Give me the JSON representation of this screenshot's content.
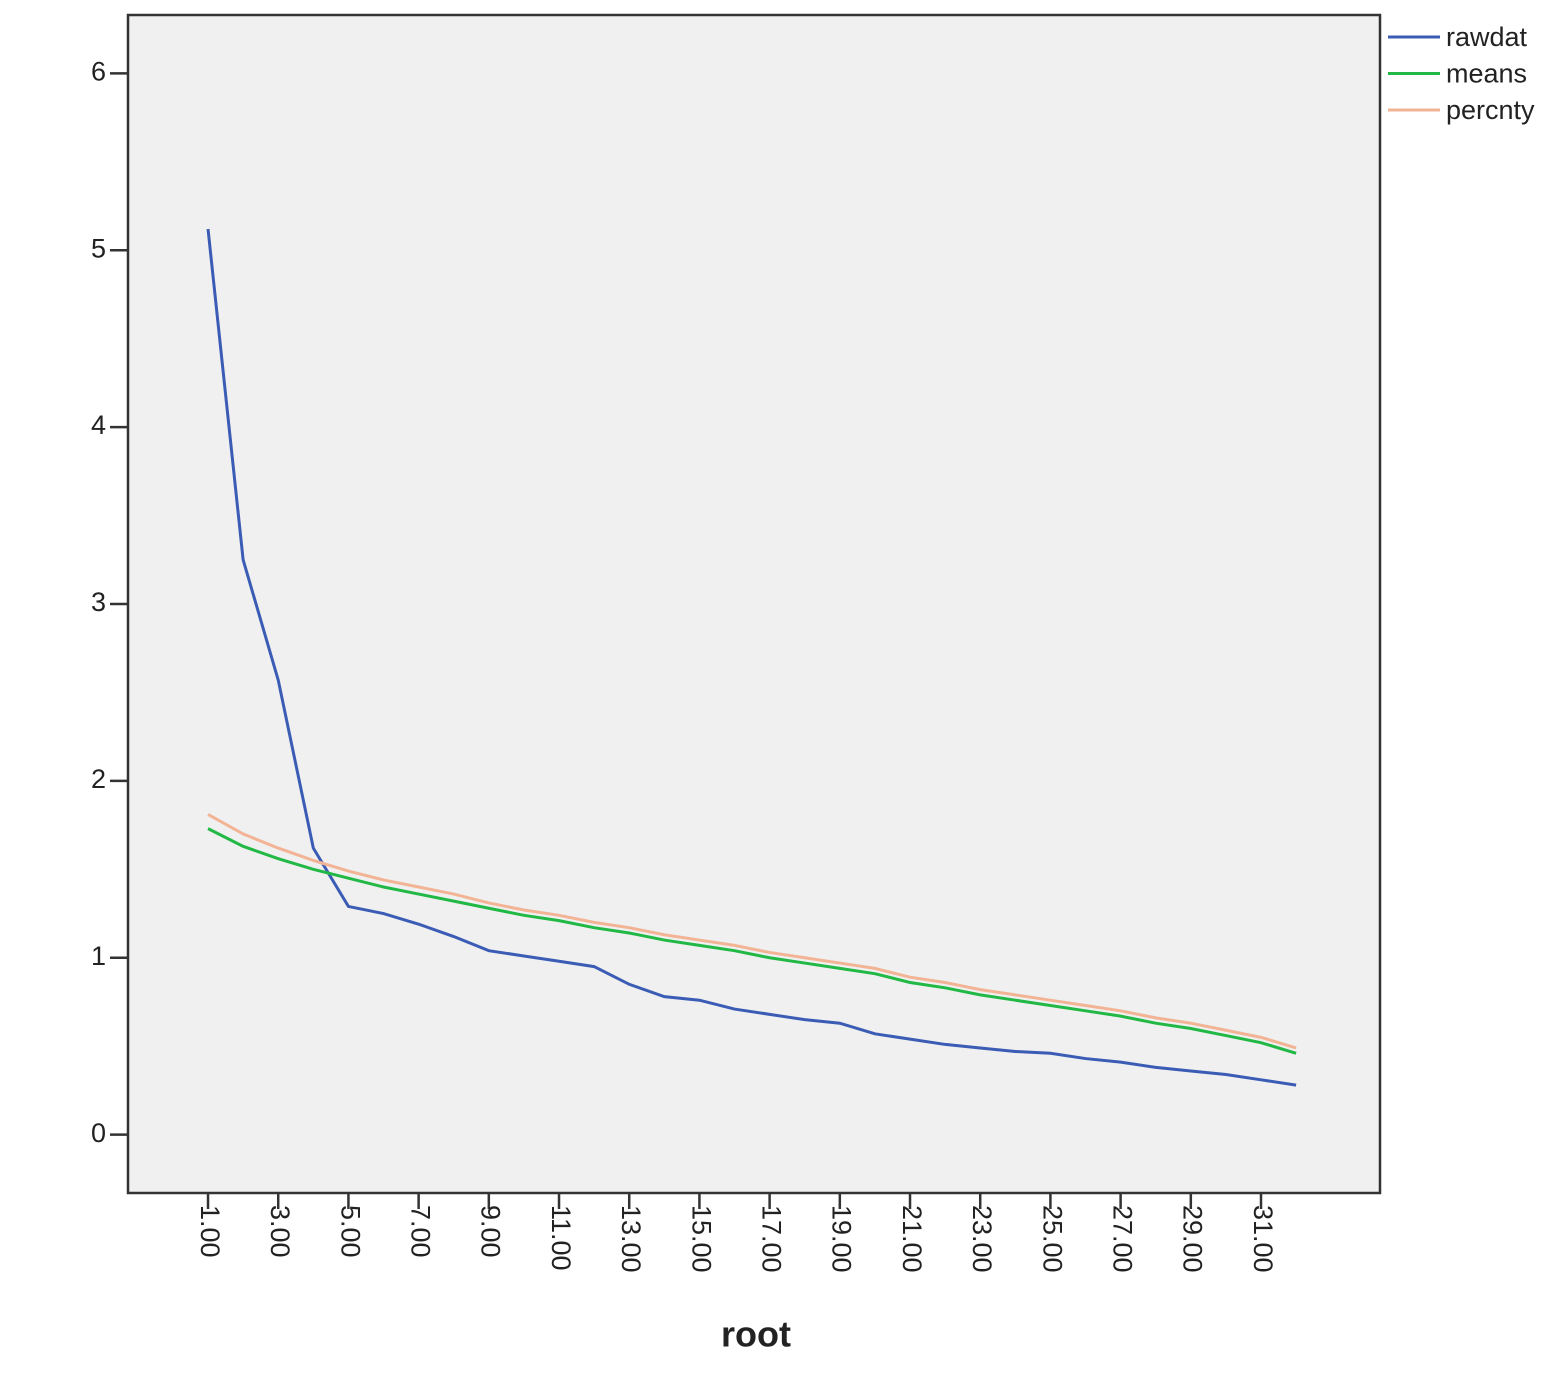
{
  "chart_data": {
    "type": "line",
    "x_label": "root",
    "x": [
      1,
      2,
      3,
      4,
      5,
      6,
      7,
      8,
      9,
      10,
      11,
      12,
      13,
      14,
      15,
      16,
      17,
      18,
      19,
      20,
      21,
      22,
      23,
      24,
      25,
      26,
      27,
      28,
      29,
      30,
      31,
      32
    ],
    "series": [
      {
        "name": "rawdat",
        "color": "#3b5cb5",
        "values": [
          5.12,
          3.25,
          2.57,
          1.62,
          1.29,
          1.25,
          1.19,
          1.12,
          1.04,
          1.01,
          0.98,
          0.95,
          0.85,
          0.78,
          0.76,
          0.71,
          0.68,
          0.65,
          0.63,
          0.57,
          0.54,
          0.51,
          0.49,
          0.47,
          0.46,
          0.43,
          0.41,
          0.38,
          0.36,
          0.34,
          0.31,
          0.28
        ]
      },
      {
        "name": "means",
        "color": "#22b845",
        "values": [
          1.73,
          1.63,
          1.56,
          1.5,
          1.45,
          1.4,
          1.36,
          1.32,
          1.28,
          1.24,
          1.21,
          1.17,
          1.14,
          1.1,
          1.07,
          1.04,
          1.0,
          0.97,
          0.94,
          0.91,
          0.86,
          0.83,
          0.79,
          0.76,
          0.73,
          0.7,
          0.67,
          0.63,
          0.6,
          0.56,
          0.52,
          0.46
        ]
      },
      {
        "name": "percnty",
        "color": "#f2b495",
        "values": [
          1.81,
          1.7,
          1.62,
          1.55,
          1.49,
          1.44,
          1.4,
          1.36,
          1.31,
          1.27,
          1.24,
          1.2,
          1.17,
          1.13,
          1.1,
          1.07,
          1.03,
          1.0,
          0.97,
          0.94,
          0.89,
          0.86,
          0.82,
          0.79,
          0.76,
          0.73,
          0.7,
          0.66,
          0.63,
          0.59,
          0.55,
          0.49
        ]
      }
    ],
    "xlim": [
      -1.28,
      34.39
    ],
    "xticks": [
      {
        "value": 1,
        "label": "1.00"
      },
      {
        "value": 3,
        "label": "3.00"
      },
      {
        "value": 5,
        "label": "5.00"
      },
      {
        "value": 7,
        "label": "7.00"
      },
      {
        "value": 9,
        "label": "9.00"
      },
      {
        "value": 11,
        "label": "11.00"
      },
      {
        "value": 13,
        "label": "13.00"
      },
      {
        "value": 15,
        "label": "15.00"
      },
      {
        "value": 17,
        "label": "17.00"
      },
      {
        "value": 19,
        "label": "19.00"
      },
      {
        "value": 21,
        "label": "21.00"
      },
      {
        "value": 23,
        "label": "23.00"
      },
      {
        "value": 25,
        "label": "25.00"
      },
      {
        "value": 27,
        "label": "27.00"
      },
      {
        "value": 29,
        "label": "29.00"
      },
      {
        "value": 31,
        "label": "31.00"
      }
    ],
    "ylim": [
      -0.33,
      6.33
    ],
    "yticks": [
      0,
      1,
      2,
      3,
      4,
      5,
      6
    ],
    "legend": "outside-right-top"
  }
}
